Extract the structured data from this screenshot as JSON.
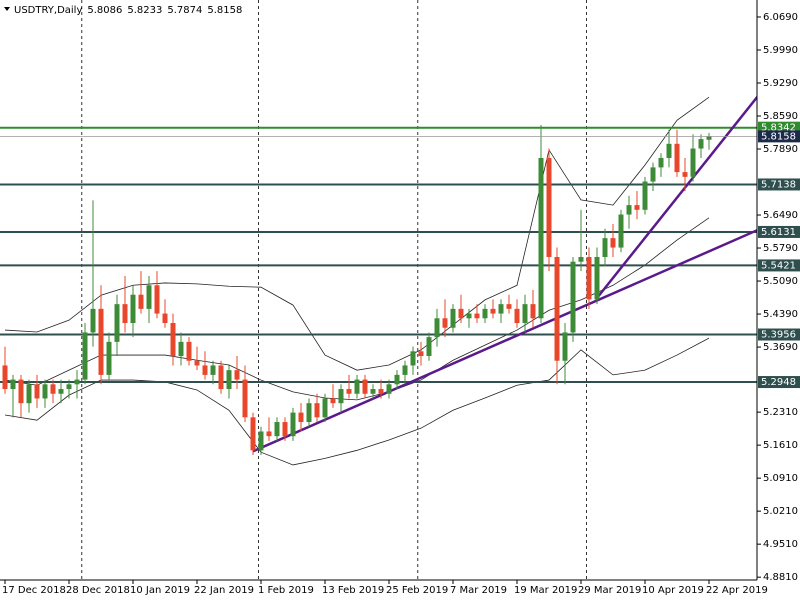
{
  "chart_data": {
    "type": "candlestick",
    "title": "USDTRY,Daily",
    "categories": [
      "17 Dec 2018",
      null,
      null,
      null,
      null,
      null,
      null,
      null,
      "28 Dec 2018",
      null,
      null,
      null,
      null,
      null,
      null,
      null,
      "10 Jan 2019",
      null,
      null,
      null,
      null,
      null,
      null,
      null,
      "22 Jan 2019",
      null,
      null,
      null,
      null,
      null,
      null,
      null,
      "1 Feb 2019",
      null,
      null,
      null,
      null,
      null,
      null,
      null,
      "13 Feb 2019",
      null,
      null,
      null,
      null,
      null,
      null,
      null,
      "25 Feb 2019",
      null,
      null,
      null,
      null,
      null,
      null,
      null,
      "7 Mar 2019",
      null,
      null,
      null,
      null,
      null,
      null,
      null,
      "19 Mar 2019",
      null,
      null,
      null,
      null,
      null,
      null,
      null,
      "29 Mar 2019",
      null,
      null,
      null,
      null,
      null,
      null,
      null,
      "10 Apr 2019",
      null,
      null,
      null,
      null,
      null,
      null,
      null,
      "22 Apr 2019"
    ],
    "open": [
      5.33,
      5.28,
      5.3,
      5.25,
      5.29,
      5.26,
      5.29,
      5.27,
      5.28,
      5.29,
      5.3,
      5.4,
      5.45,
      5.31,
      5.38,
      5.46,
      5.42,
      5.48,
      5.45,
      5.5,
      5.44,
      5.42,
      5.35,
      5.38,
      5.34,
      5.33,
      5.31,
      5.33,
      5.28,
      5.32,
      5.3,
      5.22,
      5.15,
      5.19,
      5.18,
      5.21,
      5.18,
      5.23,
      5.21,
      5.25,
      5.22,
      5.26,
      5.25,
      5.28,
      5.27,
      5.3,
      5.27,
      5.28,
      5.27,
      5.29,
      5.31,
      5.33,
      5.36,
      5.35,
      5.39,
      5.43,
      5.41,
      5.45,
      5.43,
      5.44,
      5.43,
      5.45,
      5.44,
      5.46,
      5.45,
      5.42,
      5.46,
      5.43,
      5.77,
      5.56,
      5.34,
      5.4,
      5.55,
      5.56,
      5.47,
      5.56,
      5.6,
      5.58,
      5.65,
      5.67,
      5.66,
      5.72,
      5.75,
      5.77,
      5.8,
      5.74,
      5.73,
      5.79,
      5.8086
    ],
    "high": [
      5.37,
      5.31,
      5.31,
      5.3,
      5.31,
      5.3,
      5.3,
      5.3,
      5.3,
      5.32,
      5.42,
      5.68,
      5.5,
      5.4,
      5.48,
      5.52,
      5.5,
      5.53,
      5.52,
      5.53,
      5.47,
      5.44,
      5.4,
      5.39,
      5.37,
      5.36,
      5.34,
      5.34,
      5.33,
      5.35,
      5.33,
      5.23,
      5.2,
      5.22,
      5.22,
      5.22,
      5.24,
      5.25,
      5.26,
      5.27,
      5.27,
      5.29,
      5.29,
      5.31,
      5.31,
      5.31,
      5.29,
      5.3,
      5.3,
      5.32,
      5.34,
      5.37,
      5.38,
      5.4,
      5.45,
      5.47,
      5.46,
      5.48,
      5.45,
      5.46,
      5.46,
      5.47,
      5.47,
      5.48,
      5.47,
      5.48,
      5.49,
      5.84,
      5.79,
      5.58,
      5.42,
      5.56,
      5.66,
      5.58,
      5.58,
      5.62,
      5.63,
      5.66,
      5.69,
      5.7,
      5.73,
      5.76,
      5.78,
      5.83,
      5.83,
      5.77,
      5.82,
      5.82,
      5.8233
    ],
    "low": [
      5.27,
      5.22,
      5.22,
      5.23,
      5.24,
      5.24,
      5.25,
      5.25,
      5.26,
      5.26,
      5.29,
      5.37,
      5.29,
      5.3,
      5.35,
      5.4,
      5.39,
      5.44,
      5.42,
      5.43,
      5.41,
      5.33,
      5.33,
      5.33,
      5.32,
      5.3,
      5.29,
      5.27,
      5.26,
      5.28,
      5.21,
      5.14,
      5.14,
      5.17,
      5.17,
      5.17,
      5.17,
      5.19,
      5.2,
      5.21,
      5.21,
      5.24,
      5.23,
      5.26,
      5.26,
      5.26,
      5.26,
      5.26,
      5.26,
      5.28,
      5.29,
      5.31,
      5.33,
      5.34,
      5.37,
      5.39,
      5.4,
      5.42,
      5.41,
      5.42,
      5.42,
      5.43,
      5.42,
      5.44,
      5.41,
      5.4,
      5.41,
      5.42,
      5.53,
      5.29,
      5.29,
      5.38,
      5.53,
      5.45,
      5.46,
      5.54,
      5.56,
      5.57,
      5.62,
      5.64,
      5.65,
      5.7,
      5.73,
      5.75,
      5.73,
      5.7,
      5.72,
      5.77,
      5.7874
    ],
    "close": [
      5.28,
      5.3,
      5.25,
      5.29,
      5.26,
      5.29,
      5.27,
      5.28,
      5.29,
      5.3,
      5.4,
      5.45,
      5.31,
      5.38,
      5.46,
      5.42,
      5.48,
      5.45,
      5.5,
      5.44,
      5.42,
      5.35,
      5.38,
      5.34,
      5.33,
      5.31,
      5.33,
      5.28,
      5.32,
      5.3,
      5.22,
      5.15,
      5.19,
      5.18,
      5.21,
      5.18,
      5.23,
      5.21,
      5.25,
      5.22,
      5.26,
      5.25,
      5.28,
      5.27,
      5.3,
      5.27,
      5.28,
      5.27,
      5.29,
      5.31,
      5.33,
      5.36,
      5.35,
      5.39,
      5.43,
      5.41,
      5.45,
      5.43,
      5.44,
      5.43,
      5.45,
      5.44,
      5.46,
      5.45,
      5.42,
      5.46,
      5.43,
      5.77,
      5.56,
      5.34,
      5.4,
      5.55,
      5.56,
      5.47,
      5.56,
      5.6,
      5.58,
      5.65,
      5.67,
      5.66,
      5.72,
      5.75,
      5.77,
      5.8,
      5.74,
      5.73,
      5.79,
      5.81,
      5.8158
    ],
    "up_color": "#3d8b37",
    "down_color": "#e8472b",
    "bands": {
      "color": "#222222",
      "x": [
        0,
        4,
        8,
        12,
        16,
        20,
        24,
        28,
        32,
        36,
        40,
        44,
        48,
        52,
        56,
        60,
        64,
        68,
        72,
        76,
        80,
        84,
        88
      ],
      "upper": [
        5.405,
        5.401,
        5.426,
        5.479,
        5.5,
        5.505,
        5.503,
        5.498,
        5.496,
        5.458,
        5.352,
        5.32,
        5.331,
        5.363,
        5.416,
        5.469,
        5.5,
        5.787,
        5.681,
        5.67,
        5.755,
        5.85,
        5.899
      ],
      "middle": [
        5.299,
        5.288,
        5.32,
        5.352,
        5.352,
        5.352,
        5.341,
        5.331,
        5.299,
        5.274,
        5.261,
        5.257,
        5.274,
        5.299,
        5.341,
        5.373,
        5.405,
        5.447,
        5.469,
        5.5,
        5.543,
        5.596,
        5.643
      ],
      "lower": [
        5.225,
        5.214,
        5.267,
        5.299,
        5.299,
        5.295,
        5.278,
        5.235,
        5.146,
        5.119,
        5.133,
        5.15,
        5.172,
        5.197,
        5.235,
        5.261,
        5.288,
        5.299,
        5.363,
        5.31,
        5.32,
        5.352,
        5.388
      ]
    },
    "levels": [
      {
        "value": 5.8342,
        "color": "#2e8b2e"
      },
      {
        "value": 5.7138,
        "color": "#2f4f4f"
      },
      {
        "value": 5.6131,
        "color": "#2f4f4f"
      },
      {
        "value": 5.5421,
        "color": "#2f4f4f"
      },
      {
        "value": 5.3956,
        "color": "#2f4f4f"
      },
      {
        "value": 5.2948,
        "color": "#2f4f4f"
      }
    ],
    "price_line_color": "#1c2a4a",
    "trendlines": [
      {
        "x": [
          31,
          95
        ],
        "y": [
          5.148,
          5.624
        ],
        "color": "#5b1a8c"
      },
      {
        "x": [
          74,
          95
        ],
        "y": [
          5.473,
          5.92
        ],
        "color": "#5b1a8c"
      }
    ],
    "period_separators": [
      9.6,
      31.7,
      51.6,
      72.7
    ],
    "ylim": [
      4.875,
      6.105
    ],
    "yticks": [
      {
        "value": 6.069,
        "label": "6.0690"
      },
      {
        "value": 5.999,
        "label": "5.9990"
      },
      {
        "value": 5.929,
        "label": "5.9290"
      },
      {
        "value": 5.859,
        "label": "5.8590"
      },
      {
        "value": 5.789,
        "label": "5.7890"
      },
      {
        "value": 5.649,
        "label": "5.6490"
      },
      {
        "value": 5.579,
        "label": "5.5790"
      },
      {
        "value": 5.509,
        "label": "5.5090"
      },
      {
        "value": 5.439,
        "label": "5.4390"
      },
      {
        "value": 5.369,
        "label": "5.3690"
      },
      {
        "value": 5.231,
        "label": "5.2310"
      },
      {
        "value": 5.161,
        "label": "5.1610"
      },
      {
        "value": 5.091,
        "label": "5.0910"
      },
      {
        "value": 5.021,
        "label": "5.0210"
      },
      {
        "value": 4.951,
        "label": "4.9510"
      },
      {
        "value": 4.881,
        "label": "4.8810"
      }
    ],
    "grid": false
  }
}
